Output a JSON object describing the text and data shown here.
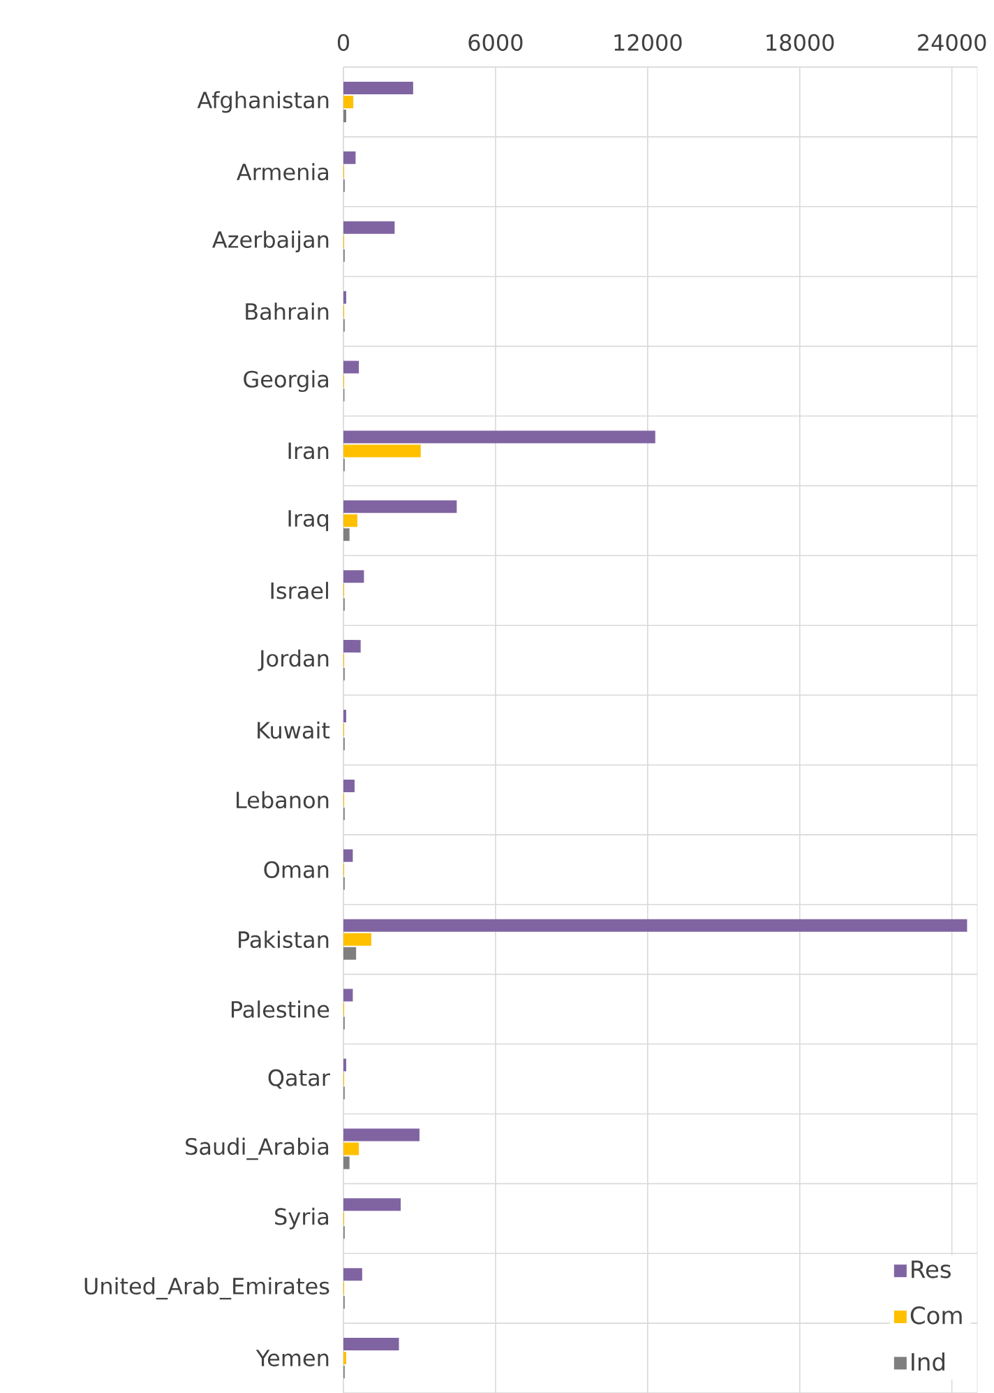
{
  "chart_data": {
    "type": "bar",
    "orientation": "horizontal",
    "categories": [
      "Afghanistan",
      "Armenia",
      "Azerbaijan",
      "Bahrain",
      "Georgia",
      "Iran",
      "Iraq",
      "Israel",
      "Jordan",
      "Kuwait",
      "Lebanon",
      "Oman",
      "Pakistan",
      "Palestine",
      "Qatar",
      "Saudi_Arabia",
      "Syria",
      "United_Arab_Emirates",
      "Yemen"
    ],
    "series": [
      {
        "name": "Res",
        "color": "#8064a2",
        "values": [
          2750,
          480,
          2020,
          110,
          610,
          12300,
          4470,
          810,
          680,
          110,
          440,
          370,
          24600,
          370,
          110,
          3000,
          2260,
          740,
          2190
        ]
      },
      {
        "name": "Com",
        "color": "#ffc000",
        "values": [
          390,
          30,
          30,
          30,
          30,
          3050,
          550,
          30,
          30,
          30,
          30,
          30,
          1100,
          30,
          30,
          610,
          30,
          30,
          110
        ]
      },
      {
        "name": "Ind",
        "color": "#7f7f7f",
        "values": [
          110,
          50,
          50,
          50,
          40,
          50,
          240,
          50,
          50,
          50,
          50,
          50,
          500,
          50,
          50,
          240,
          50,
          50,
          50
        ]
      }
    ],
    "xlim": [
      0,
      25000
    ],
    "xticks": [
      0,
      6000,
      12000,
      18000,
      24000
    ],
    "grid": true,
    "legend": "bottom right"
  }
}
